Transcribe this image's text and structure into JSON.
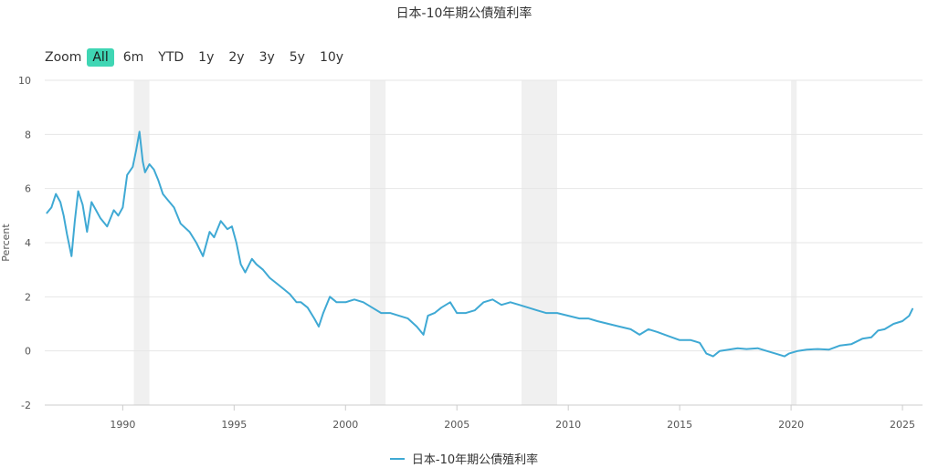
{
  "chart_data": {
    "type": "line",
    "title": "日本-10年期公債殖利率",
    "ylabel": "Percent",
    "xlabel": "",
    "ylim": [
      -2,
      10
    ],
    "xlim": [
      1986.5,
      2025.9
    ],
    "y_ticks": [
      "-2",
      "0",
      "2",
      "4",
      "6",
      "8",
      "10"
    ],
    "x_ticks": [
      "1990",
      "1995",
      "2000",
      "2005",
      "2010",
      "2015",
      "2020",
      "2025"
    ],
    "grid": true,
    "legend_position": "bottom-center",
    "recessions": [
      [
        1990.5,
        1991.2
      ],
      [
        2001.1,
        2001.8
      ],
      [
        2007.9,
        2009.5
      ],
      [
        2020.0,
        2020.25
      ]
    ],
    "series": [
      {
        "name": "日本-10年期公債殖利率",
        "color": "#3fa9d4",
        "x": [
          1986.6,
          1986.8,
          1987.0,
          1987.2,
          1987.35,
          1987.5,
          1987.7,
          1987.85,
          1988.0,
          1988.2,
          1988.4,
          1988.6,
          1988.8,
          1989.0,
          1989.3,
          1989.6,
          1989.8,
          1990.0,
          1990.2,
          1990.45,
          1990.6,
          1990.75,
          1990.9,
          1991.0,
          1991.2,
          1991.4,
          1991.6,
          1991.8,
          1992.0,
          1992.3,
          1992.6,
          1993.0,
          1993.3,
          1993.6,
          1993.9,
          1994.1,
          1994.4,
          1994.7,
          1994.9,
          1995.1,
          1995.3,
          1995.5,
          1995.8,
          1996.0,
          1996.3,
          1996.6,
          1996.9,
          1997.2,
          1997.5,
          1997.8,
          1998.0,
          1998.3,
          1998.6,
          1998.8,
          1999.0,
          1999.3,
          1999.6,
          2000.0,
          2000.4,
          2000.8,
          2001.2,
          2001.6,
          2002.0,
          2002.4,
          2002.8,
          2003.2,
          2003.5,
          2003.7,
          2004.0,
          2004.3,
          2004.7,
          2005.0,
          2005.4,
          2005.8,
          2006.2,
          2006.6,
          2007.0,
          2007.4,
          2007.8,
          2008.2,
          2008.6,
          2009.0,
          2009.5,
          2010.0,
          2010.5,
          2010.9,
          2011.3,
          2011.8,
          2012.3,
          2012.8,
          2013.2,
          2013.6,
          2014.0,
          2014.5,
          2015.0,
          2015.5,
          2015.9,
          2016.2,
          2016.5,
          2016.8,
          2017.2,
          2017.6,
          2018.0,
          2018.5,
          2018.9,
          2019.3,
          2019.7,
          2019.9,
          2020.3,
          2020.7,
          2021.2,
          2021.7,
          2022.2,
          2022.7,
          2023.2,
          2023.6,
          2023.9,
          2024.2,
          2024.6,
          2025.0,
          2025.3,
          2025.45
        ],
        "values": [
          5.1,
          5.3,
          5.8,
          5.5,
          5.0,
          4.3,
          3.5,
          4.8,
          5.9,
          5.4,
          4.4,
          5.5,
          5.2,
          4.9,
          4.6,
          5.2,
          5.0,
          5.3,
          6.5,
          6.8,
          7.4,
          8.1,
          7.0,
          6.6,
          6.9,
          6.7,
          6.3,
          5.8,
          5.6,
          5.3,
          4.7,
          4.4,
          4.0,
          3.5,
          4.4,
          4.2,
          4.8,
          4.5,
          4.6,
          4.0,
          3.2,
          2.9,
          3.4,
          3.2,
          3.0,
          2.7,
          2.5,
          2.3,
          2.1,
          1.8,
          1.8,
          1.6,
          1.2,
          0.9,
          1.4,
          2.0,
          1.8,
          1.8,
          1.9,
          1.8,
          1.6,
          1.4,
          1.4,
          1.3,
          1.2,
          0.9,
          0.6,
          1.3,
          1.4,
          1.6,
          1.8,
          1.4,
          1.4,
          1.5,
          1.8,
          1.9,
          1.7,
          1.8,
          1.7,
          1.6,
          1.5,
          1.4,
          1.4,
          1.3,
          1.2,
          1.2,
          1.1,
          1.0,
          0.9,
          0.8,
          0.6,
          0.8,
          0.7,
          0.55,
          0.4,
          0.4,
          0.3,
          -0.1,
          -0.2,
          0.0,
          0.05,
          0.1,
          0.07,
          0.1,
          0.0,
          -0.1,
          -0.2,
          -0.1,
          0.0,
          0.05,
          0.07,
          0.05,
          0.2,
          0.25,
          0.45,
          0.5,
          0.75,
          0.8,
          1.0,
          1.1,
          1.3,
          1.55
        ]
      }
    ]
  },
  "zoom": {
    "label": "Zoom",
    "buttons": [
      "All",
      "6m",
      "YTD",
      "1y",
      "2y",
      "3y",
      "5y",
      "10y"
    ],
    "active": "All"
  }
}
